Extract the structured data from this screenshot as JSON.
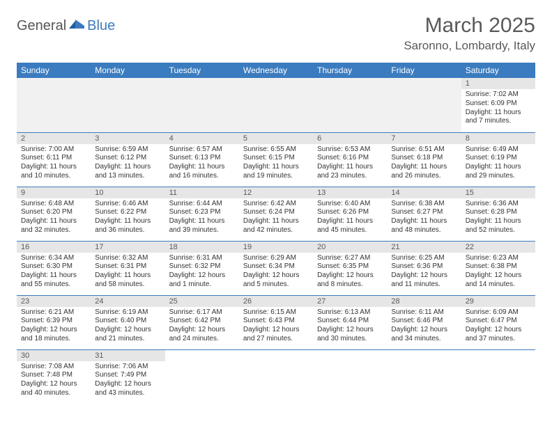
{
  "logo": {
    "general": "General",
    "blue": "Blue"
  },
  "title": "March 2025",
  "location": "Saronno, Lombardy, Italy",
  "colors": {
    "header_bg": "#3b7bbf",
    "header_text": "#ffffff",
    "daynum_bg": "#e6e6e6",
    "border": "#3b7bbf",
    "text_gray": "#595959"
  },
  "day_names": [
    "Sunday",
    "Monday",
    "Tuesday",
    "Wednesday",
    "Thursday",
    "Friday",
    "Saturday"
  ],
  "weeks": [
    [
      null,
      null,
      null,
      null,
      null,
      null,
      {
        "d": "1",
        "sr": "7:02 AM",
        "ss": "6:09 PM",
        "dl": "11 hours and 7 minutes."
      }
    ],
    [
      {
        "d": "2",
        "sr": "7:00 AM",
        "ss": "6:11 PM",
        "dl": "11 hours and 10 minutes."
      },
      {
        "d": "3",
        "sr": "6:59 AM",
        "ss": "6:12 PM",
        "dl": "11 hours and 13 minutes."
      },
      {
        "d": "4",
        "sr": "6:57 AM",
        "ss": "6:13 PM",
        "dl": "11 hours and 16 minutes."
      },
      {
        "d": "5",
        "sr": "6:55 AM",
        "ss": "6:15 PM",
        "dl": "11 hours and 19 minutes."
      },
      {
        "d": "6",
        "sr": "6:53 AM",
        "ss": "6:16 PM",
        "dl": "11 hours and 23 minutes."
      },
      {
        "d": "7",
        "sr": "6:51 AM",
        "ss": "6:18 PM",
        "dl": "11 hours and 26 minutes."
      },
      {
        "d": "8",
        "sr": "6:49 AM",
        "ss": "6:19 PM",
        "dl": "11 hours and 29 minutes."
      }
    ],
    [
      {
        "d": "9",
        "sr": "6:48 AM",
        "ss": "6:20 PM",
        "dl": "11 hours and 32 minutes."
      },
      {
        "d": "10",
        "sr": "6:46 AM",
        "ss": "6:22 PM",
        "dl": "11 hours and 36 minutes."
      },
      {
        "d": "11",
        "sr": "6:44 AM",
        "ss": "6:23 PM",
        "dl": "11 hours and 39 minutes."
      },
      {
        "d": "12",
        "sr": "6:42 AM",
        "ss": "6:24 PM",
        "dl": "11 hours and 42 minutes."
      },
      {
        "d": "13",
        "sr": "6:40 AM",
        "ss": "6:26 PM",
        "dl": "11 hours and 45 minutes."
      },
      {
        "d": "14",
        "sr": "6:38 AM",
        "ss": "6:27 PM",
        "dl": "11 hours and 48 minutes."
      },
      {
        "d": "15",
        "sr": "6:36 AM",
        "ss": "6:28 PM",
        "dl": "11 hours and 52 minutes."
      }
    ],
    [
      {
        "d": "16",
        "sr": "6:34 AM",
        "ss": "6:30 PM",
        "dl": "11 hours and 55 minutes."
      },
      {
        "d": "17",
        "sr": "6:32 AM",
        "ss": "6:31 PM",
        "dl": "11 hours and 58 minutes."
      },
      {
        "d": "18",
        "sr": "6:31 AM",
        "ss": "6:32 PM",
        "dl": "12 hours and 1 minute."
      },
      {
        "d": "19",
        "sr": "6:29 AM",
        "ss": "6:34 PM",
        "dl": "12 hours and 5 minutes."
      },
      {
        "d": "20",
        "sr": "6:27 AM",
        "ss": "6:35 PM",
        "dl": "12 hours and 8 minutes."
      },
      {
        "d": "21",
        "sr": "6:25 AM",
        "ss": "6:36 PM",
        "dl": "12 hours and 11 minutes."
      },
      {
        "d": "22",
        "sr": "6:23 AM",
        "ss": "6:38 PM",
        "dl": "12 hours and 14 minutes."
      }
    ],
    [
      {
        "d": "23",
        "sr": "6:21 AM",
        "ss": "6:39 PM",
        "dl": "12 hours and 18 minutes."
      },
      {
        "d": "24",
        "sr": "6:19 AM",
        "ss": "6:40 PM",
        "dl": "12 hours and 21 minutes."
      },
      {
        "d": "25",
        "sr": "6:17 AM",
        "ss": "6:42 PM",
        "dl": "12 hours and 24 minutes."
      },
      {
        "d": "26",
        "sr": "6:15 AM",
        "ss": "6:43 PM",
        "dl": "12 hours and 27 minutes."
      },
      {
        "d": "27",
        "sr": "6:13 AM",
        "ss": "6:44 PM",
        "dl": "12 hours and 30 minutes."
      },
      {
        "d": "28",
        "sr": "6:11 AM",
        "ss": "6:46 PM",
        "dl": "12 hours and 34 minutes."
      },
      {
        "d": "29",
        "sr": "6:09 AM",
        "ss": "6:47 PM",
        "dl": "12 hours and 37 minutes."
      }
    ],
    [
      {
        "d": "30",
        "sr": "7:08 AM",
        "ss": "7:48 PM",
        "dl": "12 hours and 40 minutes."
      },
      {
        "d": "31",
        "sr": "7:06 AM",
        "ss": "7:49 PM",
        "dl": "12 hours and 43 minutes."
      },
      null,
      null,
      null,
      null,
      null
    ]
  ],
  "labels": {
    "sunrise": "Sunrise:",
    "sunset": "Sunset:",
    "daylight": "Daylight:"
  }
}
